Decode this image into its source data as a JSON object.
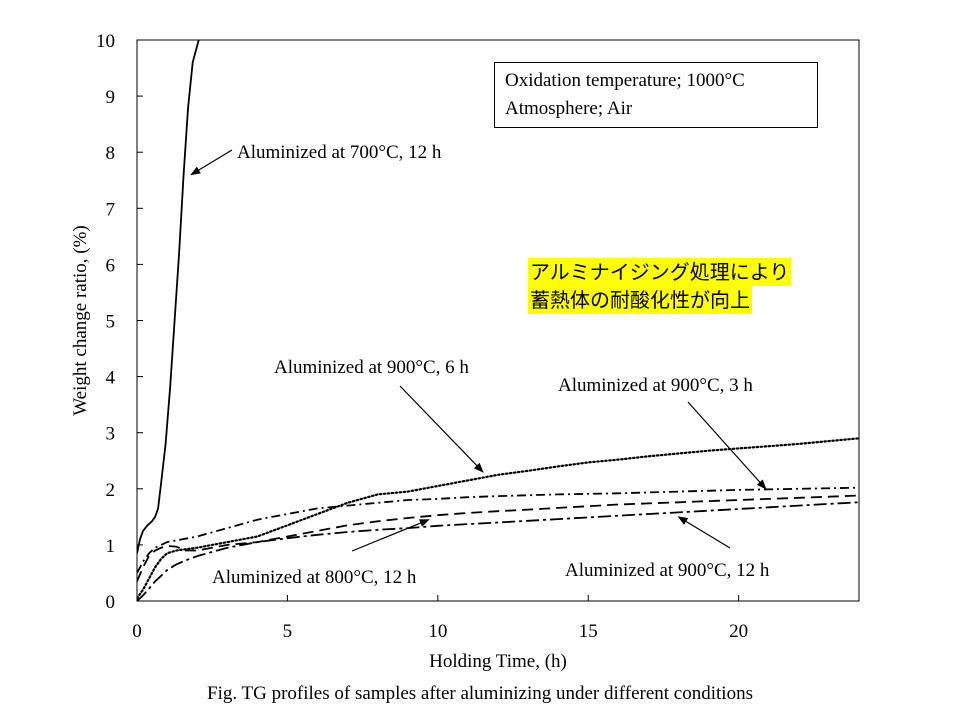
{
  "chart_data": {
    "type": "line",
    "xlabel": "Holding Time, (h)",
    "ylabel": "Weight change ratio, (%)",
    "xlim": [
      0,
      24
    ],
    "ylim": [
      0,
      10
    ],
    "x_ticks": [
      "0",
      "5",
      "10",
      "15",
      "20"
    ],
    "y_ticks": [
      "0",
      "1",
      "2",
      "3",
      "4",
      "5",
      "6",
      "7",
      "8",
      "9",
      "10"
    ],
    "grid": false,
    "legend": "none (curves labeled with arrows)",
    "series": [
      {
        "name": "Aluminized at 700°C, 12 h",
        "style": "solid",
        "points": [
          [
            0,
            0.85
          ],
          [
            0.1,
            1.1
          ],
          [
            0.2,
            1.25
          ],
          [
            0.35,
            1.35
          ],
          [
            0.5,
            1.42
          ],
          [
            0.6,
            1.5
          ],
          [
            0.7,
            1.65
          ],
          [
            0.8,
            2.1
          ],
          [
            0.95,
            2.8
          ],
          [
            1.1,
            3.8
          ],
          [
            1.25,
            5.0
          ],
          [
            1.4,
            6.2
          ],
          [
            1.55,
            7.6
          ],
          [
            1.7,
            8.8
          ],
          [
            1.85,
            9.6
          ],
          [
            2.05,
            10.0
          ]
        ]
      },
      {
        "name": "Aluminized at 900°C, 6 h",
        "style": "dotted",
        "points": [
          [
            0,
            0.05
          ],
          [
            0.2,
            0.2
          ],
          [
            0.4,
            0.4
          ],
          [
            0.6,
            0.6
          ],
          [
            0.8,
            0.75
          ],
          [
            1.0,
            0.85
          ],
          [
            1.3,
            0.9
          ],
          [
            2,
            0.95
          ],
          [
            3,
            1.05
          ],
          [
            4,
            1.15
          ],
          [
            5,
            1.35
          ],
          [
            6,
            1.55
          ],
          [
            7,
            1.75
          ],
          [
            8,
            1.9
          ],
          [
            9,
            1.95
          ],
          [
            10,
            2.05
          ],
          [
            11,
            2.15
          ],
          [
            12,
            2.25
          ],
          [
            13,
            2.32
          ],
          [
            14,
            2.4
          ],
          [
            15,
            2.47
          ],
          [
            16,
            2.52
          ],
          [
            17,
            2.58
          ],
          [
            18,
            2.63
          ],
          [
            19,
            2.68
          ],
          [
            20,
            2.72
          ],
          [
            21,
            2.76
          ],
          [
            22,
            2.8
          ],
          [
            23,
            2.85
          ],
          [
            24,
            2.9
          ]
        ]
      },
      {
        "name": "Aluminized at 900°C, 3 h",
        "style": "dash-dot",
        "points": [
          [
            0,
            0.5
          ],
          [
            0.2,
            0.7
          ],
          [
            0.4,
            0.85
          ],
          [
            0.6,
            0.95
          ],
          [
            0.8,
            1.0
          ],
          [
            1.0,
            1.05
          ],
          [
            2,
            1.15
          ],
          [
            3,
            1.3
          ],
          [
            4,
            1.45
          ],
          [
            5,
            1.55
          ],
          [
            6,
            1.65
          ],
          [
            7,
            1.7
          ],
          [
            8,
            1.75
          ],
          [
            9,
            1.8
          ],
          [
            10,
            1.82
          ],
          [
            11,
            1.85
          ],
          [
            12,
            1.87
          ],
          [
            14,
            1.9
          ],
          [
            16,
            1.92
          ],
          [
            18,
            1.95
          ],
          [
            20,
            1.98
          ],
          [
            22,
            2.0
          ],
          [
            24,
            2.02
          ]
        ]
      },
      {
        "name": "Aluminized at 800°C, 12 h",
        "style": "long-dash",
        "points": [
          [
            0,
            0.35
          ],
          [
            0.2,
            0.6
          ],
          [
            0.4,
            0.8
          ],
          [
            0.6,
            0.9
          ],
          [
            0.8,
            0.95
          ],
          [
            1.0,
            0.98
          ],
          [
            1.3,
            0.97
          ],
          [
            1.6,
            0.9
          ],
          [
            2,
            0.9
          ],
          [
            3,
            1.0
          ],
          [
            4,
            1.05
          ],
          [
            5,
            1.15
          ],
          [
            6,
            1.25
          ],
          [
            7,
            1.35
          ],
          [
            8,
            1.42
          ],
          [
            9,
            1.48
          ],
          [
            10,
            1.53
          ],
          [
            11,
            1.57
          ],
          [
            12,
            1.6
          ],
          [
            13,
            1.63
          ],
          [
            14,
            1.66
          ],
          [
            15,
            1.69
          ],
          [
            16,
            1.72
          ],
          [
            17,
            1.74
          ],
          [
            18,
            1.76
          ],
          [
            19,
            1.78
          ],
          [
            20,
            1.8
          ],
          [
            21,
            1.82
          ],
          [
            22,
            1.84
          ],
          [
            23,
            1.86
          ],
          [
            24,
            1.88
          ]
        ]
      },
      {
        "name": "Aluminized at 900°C, 12 h",
        "style": "long-dash-dot",
        "points": [
          [
            0,
            0.0
          ],
          [
            0.2,
            0.1
          ],
          [
            0.4,
            0.22
          ],
          [
            0.6,
            0.35
          ],
          [
            0.8,
            0.45
          ],
          [
            1.0,
            0.55
          ],
          [
            1.3,
            0.65
          ],
          [
            1.6,
            0.72
          ],
          [
            2,
            0.8
          ],
          [
            3,
            0.95
          ],
          [
            4,
            1.05
          ],
          [
            5,
            1.12
          ],
          [
            6,
            1.18
          ],
          [
            7,
            1.23
          ],
          [
            8,
            1.27
          ],
          [
            9,
            1.3
          ],
          [
            10,
            1.34
          ],
          [
            11,
            1.37
          ],
          [
            12,
            1.4
          ],
          [
            13,
            1.43
          ],
          [
            14,
            1.46
          ],
          [
            15,
            1.49
          ],
          [
            16,
            1.52
          ],
          [
            17,
            1.55
          ],
          [
            18,
            1.58
          ],
          [
            19,
            1.61
          ],
          [
            20,
            1.64
          ],
          [
            21,
            1.67
          ],
          [
            22,
            1.7
          ],
          [
            23,
            1.73
          ],
          [
            24,
            1.76
          ]
        ]
      }
    ],
    "annotations": [
      {
        "text": "Aluminized at 700°C, 12 h",
        "arrow_to": [
          1.8,
          7.6
        ]
      },
      {
        "text": "Aluminized at 900°C, 6 h",
        "arrow_to": [
          11.5,
          2.3
        ]
      },
      {
        "text": "Aluminized at 900°C, 3 h",
        "arrow_to": [
          20.9,
          2.0
        ]
      },
      {
        "text": "Aluminized at 800°C, 12 h",
        "arrow_to": [
          9.7,
          1.45
        ]
      },
      {
        "text": "Aluminized at 900°C, 12 h",
        "arrow_to": [
          18.0,
          1.5
        ]
      }
    ]
  },
  "info_box": {
    "line1": "Oxidation temperature; 1000°C",
    "line2": "Atmosphere; Air"
  },
  "jp_note": {
    "line1": "アルミナイジング処理により",
    "line2": "蓄熱体の耐酸化性が向上",
    "highlight_color": "#ffff00"
  },
  "caption": "Fig.   TG profiles of samples after aluminizing  under different conditions"
}
